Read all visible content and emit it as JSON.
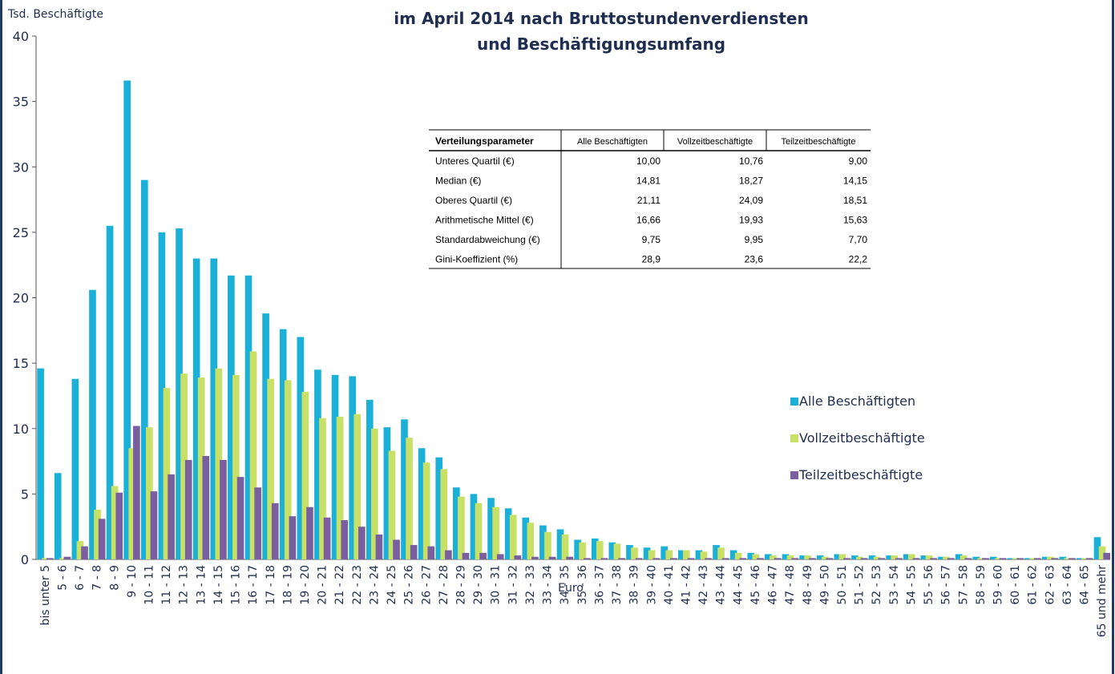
{
  "chart_data": {
    "type": "bar",
    "title": [
      "im April 2014 nach Bruttostundenverdiensten",
      "und Beschäftigungsumfang"
    ],
    "y_label": "Tsd. Beschäftigte",
    "x_label": "Euro",
    "categories": [
      "bis unter 5",
      "5 - 6",
      "6 - 7",
      "7 - 8",
      "8 - 9",
      "9 - 10",
      "10 - 11",
      "11 - 12",
      "12 - 13",
      "13 - 14",
      "14 - 15",
      "15 - 16",
      "16 - 17",
      "17 - 18",
      "18 - 19",
      "19 - 20",
      "20 - 21",
      "21 - 22",
      "22 - 23",
      "23 - 24",
      "24 - 25",
      "25 - 26",
      "26 - 27",
      "27 - 28",
      "28 - 29",
      "29 - 30",
      "30 - 31",
      "31 - 32",
      "32 - 33",
      "33 - 34",
      "34 - 35",
      "35 - 36",
      "36 - 37",
      "37 - 38",
      "38 - 39",
      "39 - 40",
      "40 - 41",
      "41 - 42",
      "42 - 43",
      "43 - 44",
      "44 - 45",
      "45 - 46",
      "46 - 47",
      "47 - 48",
      "48 - 49",
      "49 - 50",
      "50 - 51",
      "51 - 52",
      "52 - 53",
      "53 - 54",
      "54 - 55",
      "55 - 56",
      "56 - 57",
      "57 - 58",
      "58 - 59",
      "59 - 60",
      "60 - 61",
      "61 - 62",
      "62 - 63",
      "63 - 64",
      "64 - 65",
      "65 und mehr"
    ],
    "series": [
      {
        "name": "Alle Beschäftigten",
        "color": "#1ab0d8",
        "values": [
          14.6,
          6.6,
          13.8,
          20.6,
          25.5,
          36.6,
          29.0,
          25.0,
          25.3,
          23.0,
          23.0,
          21.7,
          21.7,
          18.8,
          17.6,
          17.0,
          14.5,
          14.1,
          14.0,
          12.2,
          10.1,
          10.7,
          8.5,
          7.8,
          5.5,
          5.0,
          4.7,
          3.9,
          3.2,
          2.6,
          2.3,
          1.5,
          1.6,
          1.3,
          1.1,
          0.9,
          1.0,
          0.7,
          0.7,
          1.1,
          0.7,
          0.5,
          0.4,
          0.4,
          0.3,
          0.3,
          0.4,
          0.3,
          0.3,
          0.3,
          0.4,
          0.3,
          0.2,
          0.4,
          0.2,
          0.2,
          0.1,
          0.1,
          0.2,
          0.2,
          0.1,
          1.7
        ]
      },
      {
        "name": "Vollzeitbeschäftigte",
        "color": "#c9e066",
        "values": [
          0.1,
          0.1,
          1.4,
          3.8,
          5.6,
          8.5,
          10.1,
          13.1,
          14.2,
          13.9,
          14.6,
          14.1,
          15.9,
          13.8,
          13.7,
          12.8,
          10.8,
          10.9,
          11.1,
          10.0,
          8.3,
          9.3,
          7.4,
          6.9,
          4.8,
          4.3,
          4.0,
          3.4,
          2.8,
          2.1,
          1.9,
          1.3,
          1.4,
          1.2,
          0.9,
          0.7,
          0.7,
          0.7,
          0.6,
          0.9,
          0.5,
          0.4,
          0.3,
          0.3,
          0.3,
          0.2,
          0.4,
          0.2,
          0.2,
          0.3,
          0.4,
          0.3,
          0.2,
          0.3,
          0.1,
          0.1,
          0.1,
          0.1,
          0.2,
          0.1,
          0.1,
          1.0
        ]
      },
      {
        "name": "Teilzeitbeschäftigte",
        "color": "#7a5fa0",
        "values": [
          0.1,
          0.2,
          1.0,
          3.1,
          5.1,
          10.2,
          5.2,
          6.5,
          7.6,
          7.9,
          7.6,
          6.3,
          5.5,
          4.3,
          3.3,
          4.0,
          3.2,
          3.0,
          2.5,
          1.9,
          1.5,
          1.1,
          1.0,
          0.7,
          0.5,
          0.5,
          0.4,
          0.3,
          0.2,
          0.2,
          0.2,
          0.1,
          0.1,
          0.1,
          0.1,
          0.1,
          0.1,
          0.1,
          0.1,
          0.1,
          0.1,
          0.1,
          0.1,
          0.1,
          0.1,
          0.1,
          0.1,
          0.1,
          0.1,
          0.1,
          0.1,
          0.1,
          0.1,
          0.1,
          0.1,
          0.1,
          0.1,
          0.1,
          0.1,
          0.1,
          0.1,
          0.5
        ]
      }
    ],
    "ylim": [
      0,
      40
    ],
    "yticks": [
      0,
      5,
      10,
      15,
      20,
      25,
      30,
      35,
      40
    ],
    "grid": false,
    "legend": "right",
    "table": {
      "columns": [
        "Verteilungsparameter",
        "Alle Beschäftigten",
        "Vollzeitbeschäftigte",
        "Teilzeitbeschäftigte"
      ],
      "rows": [
        [
          "Unteres Quartil (€)",
          "10,00",
          "10,76",
          "9,00"
        ],
        [
          "Median (€)",
          "14,81",
          "18,27",
          "14,15"
        ],
        [
          "Oberes Quartil (€)",
          "21,11",
          "24,09",
          "18,51"
        ],
        [
          "Arithmetische Mittel (€)",
          "16,66",
          "19,93",
          "15,63"
        ],
        [
          "Standardabweichung (€)",
          "9,75",
          "9,95",
          "7,70"
        ],
        [
          "Gini-Koeffizient (%)",
          "28,9",
          "23,6",
          "22,2"
        ]
      ]
    }
  }
}
